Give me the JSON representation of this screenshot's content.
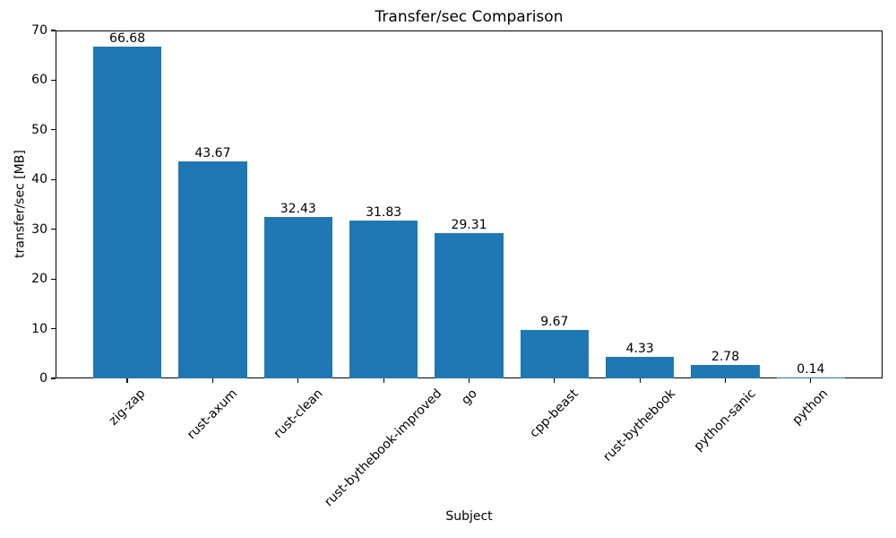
{
  "chart_data": {
    "type": "bar",
    "title": "Transfer/sec Comparison",
    "xlabel": "Subject",
    "ylabel": "transfer/sec [MB]",
    "categories": [
      "zig-zap",
      "rust-axum",
      "rust-clean",
      "rust-bythebook-improved",
      "go",
      "cpp-beast",
      "rust-bythebook",
      "python-sanic",
      "python"
    ],
    "values": [
      66.68,
      43.67,
      32.43,
      31.83,
      29.31,
      9.67,
      4.33,
      2.78,
      0.14
    ],
    "bar_labels": [
      "66.68",
      "43.67",
      "32.43",
      "31.83",
      "29.31",
      "9.67",
      "4.33",
      "2.78",
      "0.14"
    ],
    "ylim": [
      0,
      70
    ],
    "yticks": [
      0,
      10,
      20,
      30,
      40,
      50,
      60,
      70
    ],
    "bar_color": "#1f77b4",
    "grid": false,
    "legend_position": "none",
    "x_tick_rotation_deg": 45
  }
}
